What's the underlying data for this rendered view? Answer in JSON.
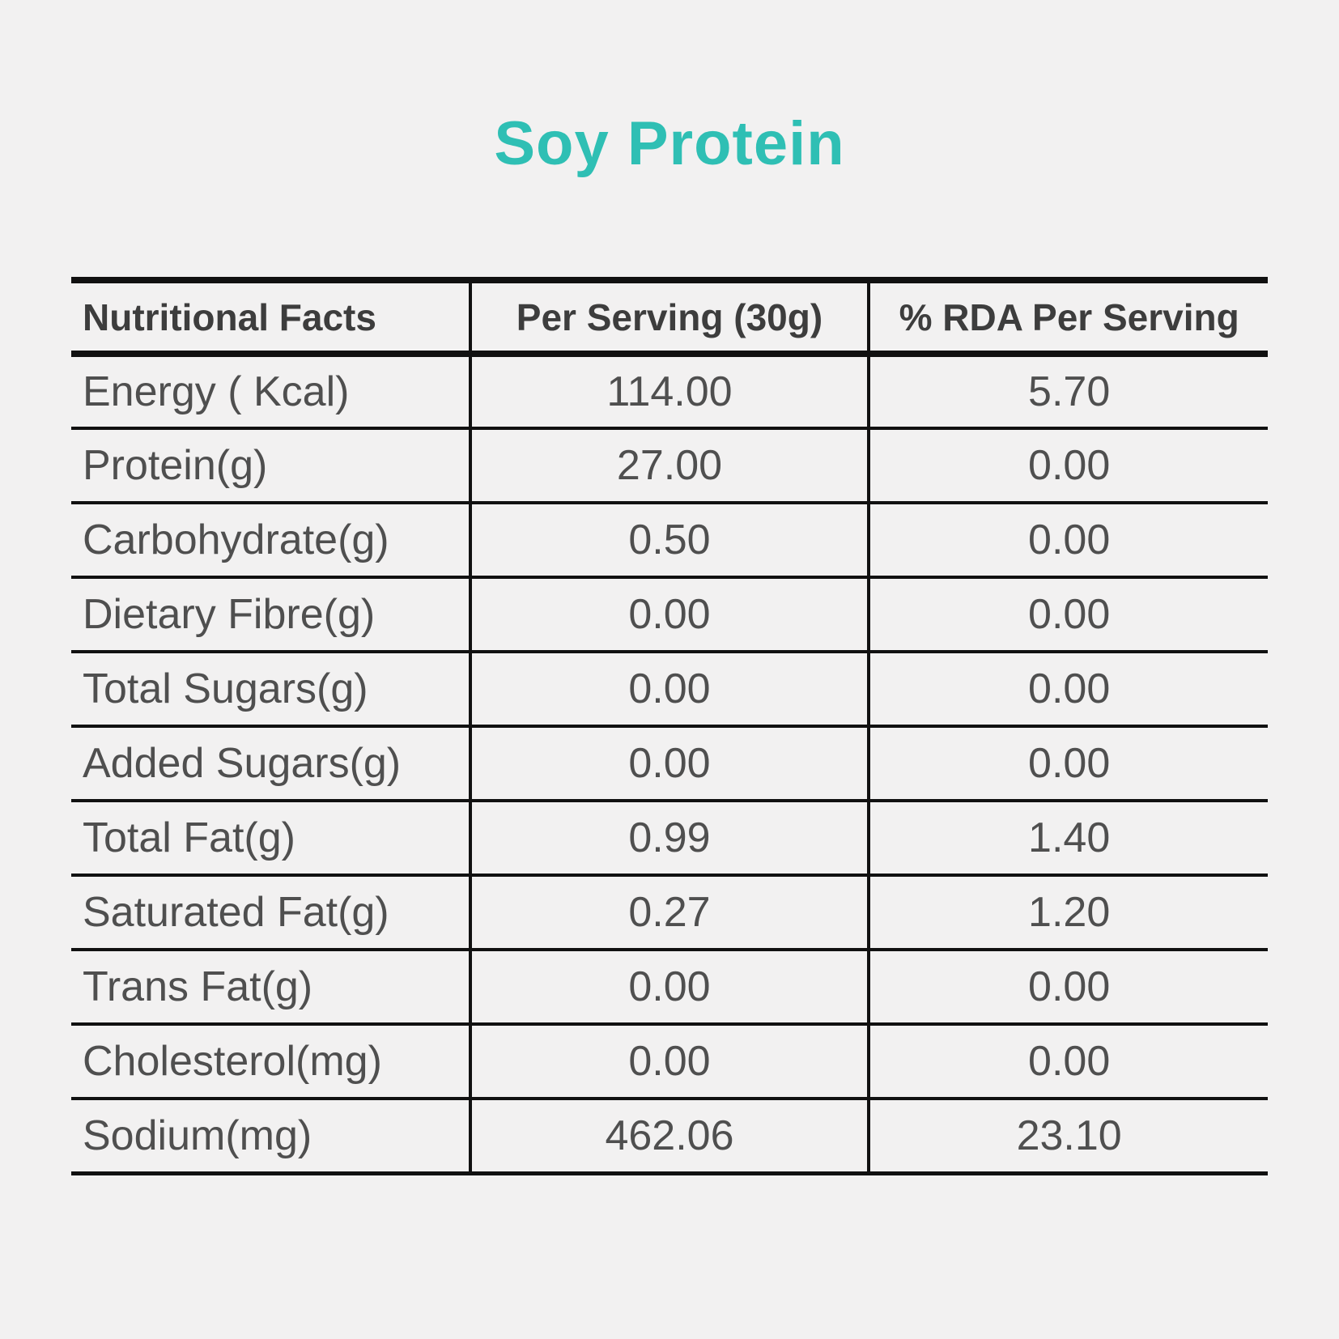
{
  "page": {
    "title": "Soy Protein"
  },
  "colors": {
    "background": "#F2F1F1",
    "title_accent": "#2FBFB4",
    "header_text": "#3D3D3D",
    "body_text": "#4F4F4F",
    "border": "#111111"
  },
  "table": {
    "headers": [
      "Nutritional Facts",
      "Per Serving (30g)",
      "% RDA Per Serving"
    ],
    "rows": [
      {
        "label": "Energy ( Kcal)",
        "per_serving": "114.00",
        "rda_percent": "5.70"
      },
      {
        "label": "Protein(g)",
        "per_serving": "27.00",
        "rda_percent": "0.00"
      },
      {
        "label": "Carbohydrate(g)",
        "per_serving": "0.50",
        "rda_percent": "0.00"
      },
      {
        "label": "Dietary Fibre(g)",
        "per_serving": "0.00",
        "rda_percent": "0.00"
      },
      {
        "label": "Total Sugars(g)",
        "per_serving": "0.00",
        "rda_percent": "0.00"
      },
      {
        "label": "Added Sugars(g)",
        "per_serving": "0.00",
        "rda_percent": "0.00"
      },
      {
        "label": "Total Fat(g)",
        "per_serving": "0.99",
        "rda_percent": "1.40"
      },
      {
        "label": "Saturated Fat(g)",
        "per_serving": "0.27",
        "rda_percent": "1.20"
      },
      {
        "label": "Trans Fat(g)",
        "per_serving": "0.00",
        "rda_percent": "0.00"
      },
      {
        "label": "Cholesterol(mg)",
        "per_serving": "0.00",
        "rda_percent": "0.00"
      },
      {
        "label": "Sodium(mg)",
        "per_serving": "462.06",
        "rda_percent": "23.10"
      }
    ]
  }
}
